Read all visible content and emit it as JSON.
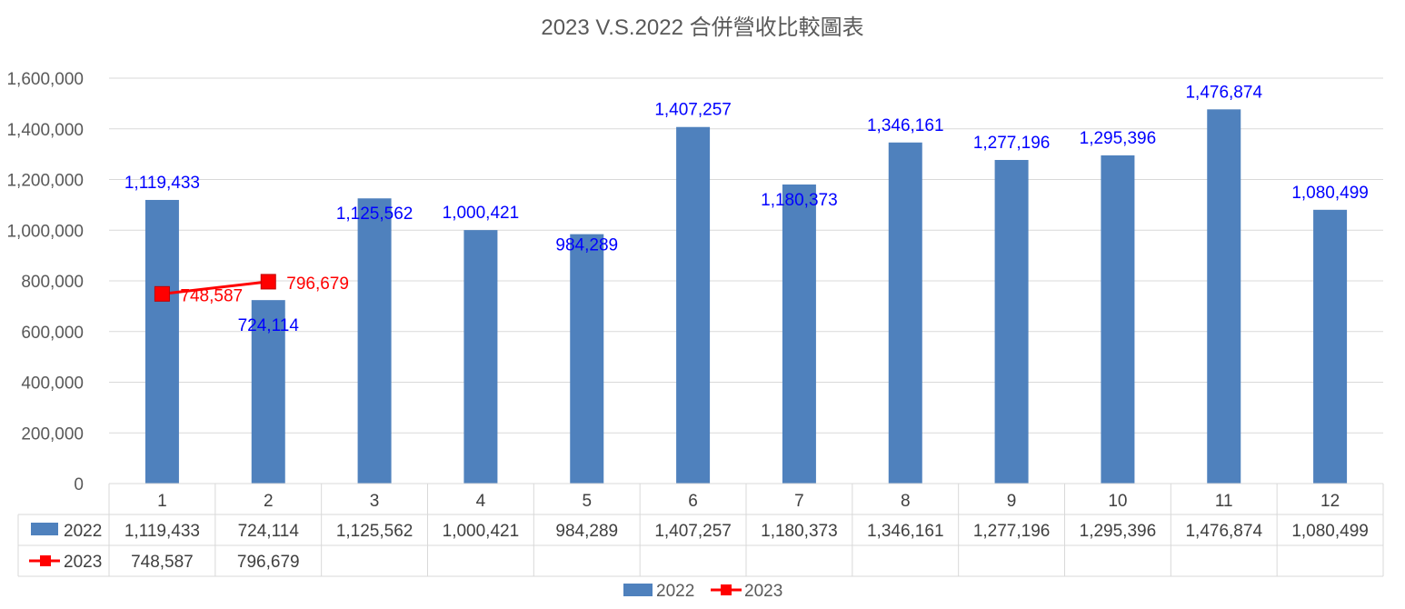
{
  "chart_data": {
    "type": "bar",
    "title": "2023 V.S.2022 合併營收比較圖表",
    "categories": [
      "1",
      "2",
      "3",
      "4",
      "5",
      "6",
      "7",
      "8",
      "9",
      "10",
      "11",
      "12"
    ],
    "ylim": [
      0,
      1600000
    ],
    "yticks": [
      "0",
      "200,000",
      "400,000",
      "600,000",
      "800,000",
      "1,000,000",
      "1,200,000",
      "1,400,000",
      "1,600,000"
    ],
    "grid": true,
    "legend": "bottom",
    "data_table": true,
    "series": [
      {
        "name": "2022",
        "type": "bar",
        "color": "#4f81bd",
        "label_color": "#0000ff",
        "values": [
          1119433,
          724114,
          1125562,
          1000421,
          984289,
          1407257,
          1180373,
          1346161,
          1277196,
          1295396,
          1476874,
          1080499
        ],
        "labels": [
          "1,119,433",
          "724,114",
          "1,125,562",
          "1,000,421",
          "984,289",
          "1,407,257",
          "1,180,373",
          "1,346,161",
          "1,277,196",
          "1,295,396",
          "1,476,874",
          "1,080,499"
        ]
      },
      {
        "name": "2023",
        "type": "line",
        "color": "#ff0000",
        "label_color": "#ff0000",
        "marker": "square",
        "values": [
          748587,
          796679,
          null,
          null,
          null,
          null,
          null,
          null,
          null,
          null,
          null,
          null
        ],
        "labels": [
          "748,587",
          "796,679",
          "",
          "",
          "",
          "",
          "",
          "",
          "",
          "",
          "",
          ""
        ]
      }
    ]
  }
}
